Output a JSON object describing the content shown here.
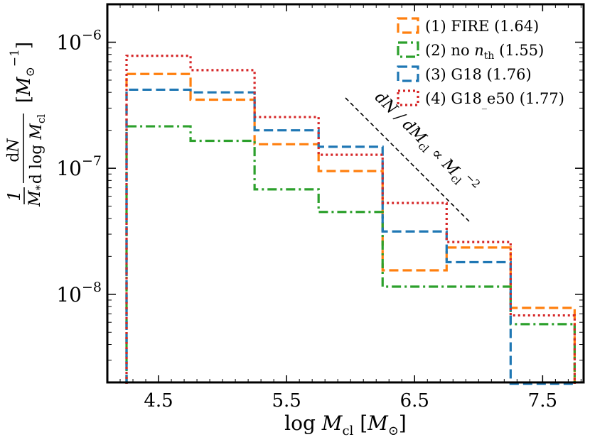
{
  "chart_data": {
    "type": "step-histogram",
    "title": "",
    "xlabel": "log M_cl [M_⊙]",
    "ylabel": "(1/M_*) dN / d log M_cl [M_⊙^-1]",
    "x_scale": "linear",
    "y_scale": "log",
    "xlim": [
      4.1,
      7.82
    ],
    "ylim": [
      2e-09,
      2e-06
    ],
    "x_ticks": [
      4.5,
      5.5,
      6.5,
      7.5
    ],
    "x_tick_labels": [
      "4.5",
      "5.5",
      "6.5",
      "7.5"
    ],
    "y_tick_labels": [
      "10−6",
      "10−7",
      "10−8"
    ],
    "y_tick_values": [
      1e-06,
      1e-07,
      1e-08
    ],
    "bin_edges": [
      4.25,
      4.75,
      5.25,
      5.75,
      6.25,
      6.75,
      7.25,
      7.75
    ],
    "series": [
      {
        "name": "(1) FIRE (1.64)",
        "color": "#ff7f0e",
        "style": "dashed",
        "values": [
          5.6e-07,
          3.5e-07,
          1.55e-07,
          9.5e-08,
          1.55e-08,
          2.35e-08,
          7.8e-09
        ]
      },
      {
        "name": "(2) no n_th (1.55)",
        "color": "#2ca02c",
        "style": "dashdot",
        "values": [
          2.15e-07,
          1.65e-07,
          6.8e-08,
          4.5e-08,
          1.15e-08,
          1.15e-08,
          5.8e-09
        ]
      },
      {
        "name": "(3) G18 (1.76)",
        "color": "#1f77b4",
        "style": "dashed",
        "values": [
          4.2e-07,
          4e-07,
          2e-07,
          1.48e-07,
          3.15e-08,
          1.8e-08,
          0
        ]
      },
      {
        "name": "(4) G18_e50 (1.77)",
        "color": "#d62728",
        "style": "dotted",
        "values": [
          7.8e-07,
          6e-07,
          2.55e-07,
          1.28e-07,
          5.3e-08,
          2.6e-08,
          6.8e-09
        ]
      }
    ],
    "legend": {
      "position": "top-right",
      "entries": [
        {
          "prefix": "(1) FIRE (1.64)"
        },
        {
          "prefix": "(2) no ",
          "math": "n",
          "sub": "th",
          "suffix": " (1.55)"
        },
        {
          "prefix": "(3) G18 (1.76)"
        },
        {
          "prefix": "(4) G18",
          "subscript_char": "_",
          "suffix": "e50 (1.77)"
        }
      ]
    },
    "annotation": {
      "text_parts": [
        "dN / dM",
        "cl",
        " ∝ M",
        "cl",
        "−2"
      ],
      "reference_slope": -2
    }
  }
}
